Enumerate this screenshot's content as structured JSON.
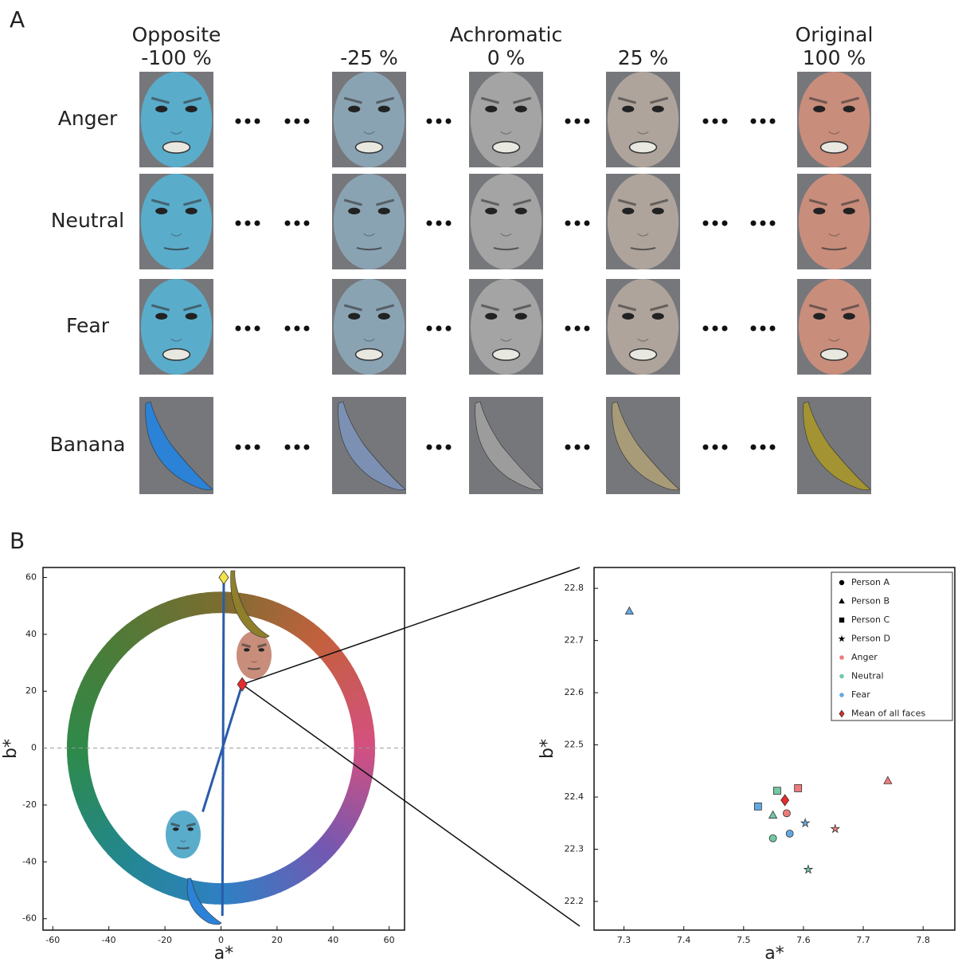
{
  "panel_a": {
    "label": "A",
    "columns": [
      {
        "name": "Opposite",
        "level": "-100 %"
      },
      {
        "level": "-25 %"
      },
      {
        "name": "Achromatic",
        "level": "0 %"
      },
      {
        "level": "25 %"
      },
      {
        "name": "Original",
        "level": "100 %"
      }
    ],
    "rows": [
      "Anger",
      "Neutral",
      "Fear",
      "Banana"
    ]
  },
  "panel_b": {
    "label": "B"
  },
  "chart_data": [
    {
      "type": "scatter",
      "xlabel": "a*",
      "ylabel": "b*",
      "xlim": [
        -63.5,
        65.5
      ],
      "ylim": [
        -64,
        63.5
      ],
      "xticks": [
        -60,
        -40,
        -20,
        0,
        20,
        40,
        60
      ],
      "yticks": [
        -60,
        -40,
        -20,
        0,
        20,
        40,
        60
      ],
      "ring_radius": [
        47.5,
        55
      ],
      "hline": 0,
      "lines": [
        {
          "color": "#2a5cab",
          "x": [
            1,
            0.5
          ],
          "y": [
            60,
            -59
          ]
        },
        {
          "color": "#2a5cab",
          "x": [
            7.57,
            -6.5
          ],
          "y": [
            22.4,
            -22.4
          ]
        }
      ],
      "points": [
        {
          "x": 1,
          "y": 60,
          "color": "#f2e44a",
          "marker": "diamond"
        },
        {
          "x": 7.57,
          "y": 22.4,
          "color": "#e52b2b",
          "marker": "diamond"
        }
      ]
    },
    {
      "type": "scatter",
      "xlabel": "a*",
      "ylabel": "b*",
      "xlim": [
        7.25,
        7.853
      ],
      "ylim": [
        22.145,
        22.84
      ],
      "xticks": [
        7.3,
        7.4,
        7.5,
        7.6,
        7.7,
        7.8
      ],
      "yticks": [
        22.2,
        22.3,
        22.4,
        22.5,
        22.6,
        22.7,
        22.8
      ],
      "emotions": [
        {
          "name": "Anger",
          "color": "#ee7c7c"
        },
        {
          "name": "Neutral",
          "color": "#72c9a3"
        },
        {
          "name": "Fear",
          "color": "#64a8e0"
        }
      ],
      "series": [
        {
          "name": "Person A",
          "marker": "circle",
          "x": [
            7.572,
            7.549,
            7.577
          ],
          "y": [
            22.369,
            22.321,
            22.33
          ]
        },
        {
          "name": "Person B",
          "marker": "triangle",
          "x": [
            7.741,
            7.549,
            7.309
          ],
          "y": [
            22.431,
            22.365,
            22.756
          ]
        },
        {
          "name": "Person C",
          "marker": "square",
          "x": [
            7.591,
            7.556,
            7.524
          ],
          "y": [
            22.417,
            22.412,
            22.382
          ]
        },
        {
          "name": "Person D",
          "marker": "star",
          "x": [
            7.653,
            7.608,
            7.603
          ],
          "y": [
            22.339,
            22.261,
            22.35
          ]
        }
      ],
      "mean": {
        "name": "Mean of all faces",
        "marker": "diamond",
        "color": "#e52b2b",
        "x": 7.569,
        "y": 22.394
      }
    }
  ]
}
